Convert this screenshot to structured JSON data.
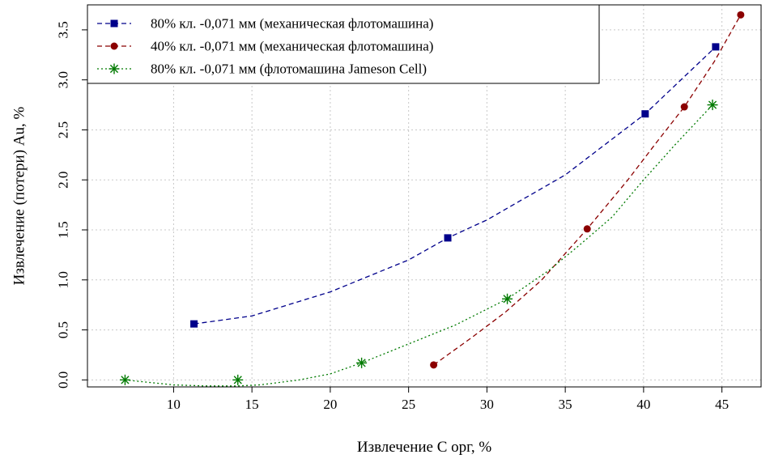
{
  "chart_data": {
    "type": "line",
    "xlabel": "Извлечение С орг, %",
    "ylabel": "Извлечение (потери) Au, %",
    "xlim": [
      4.5,
      47.5
    ],
    "ylim": [
      -0.07,
      3.75
    ],
    "xticks": [
      10,
      15,
      20,
      25,
      30,
      35,
      40,
      45
    ],
    "yticks": [
      0.0,
      0.5,
      1.0,
      1.5,
      2.0,
      2.5,
      3.0,
      3.5
    ],
    "xtick_labels": [
      "10",
      "15",
      "20",
      "25",
      "30",
      "35",
      "40",
      "45"
    ],
    "ytick_labels": [
      "0.0",
      "0.5",
      "1.0",
      "1.5",
      "2.0",
      "2.5",
      "3.0",
      "3.5"
    ],
    "grid": true,
    "legend_position": "top-left",
    "series": [
      {
        "name": "80% кл. -0,071 мм (механическая флотомашина)",
        "color": "#00008b",
        "marker": "square",
        "line_style": "dashed",
        "points": [
          [
            11.3,
            0.56
          ],
          [
            27.5,
            1.42
          ],
          [
            40.1,
            2.66
          ],
          [
            44.6,
            3.33
          ]
        ],
        "curve": [
          [
            11.3,
            0.56
          ],
          [
            15,
            0.64
          ],
          [
            20,
            0.88
          ],
          [
            25,
            1.2
          ],
          [
            27.5,
            1.42
          ],
          [
            30,
            1.6
          ],
          [
            35,
            2.05
          ],
          [
            40.1,
            2.66
          ],
          [
            44.6,
            3.33
          ]
        ]
      },
      {
        "name": "40% кл. -0,071 мм (механическая флотомашина)",
        "color": "#8b0000",
        "marker": "circle",
        "line_style": "dashed",
        "points": [
          [
            26.6,
            0.15
          ],
          [
            36.4,
            1.51
          ],
          [
            42.6,
            2.73
          ],
          [
            46.2,
            3.65
          ]
        ],
        "curve": [
          [
            26.6,
            0.15
          ],
          [
            29,
            0.42
          ],
          [
            31.2,
            0.68
          ],
          [
            33.5,
            1.0
          ],
          [
            36.4,
            1.51
          ],
          [
            39,
            2.0
          ],
          [
            40.8,
            2.37
          ],
          [
            42.6,
            2.73
          ],
          [
            44.5,
            3.18
          ],
          [
            46.2,
            3.65
          ]
        ]
      },
      {
        "name": "80% кл. -0,071 мм (флотомашина Jameson Cell)",
        "color": "#007a00",
        "marker": "asterisk",
        "line_style": "dotted",
        "points": [
          [
            6.9,
            0.0
          ],
          [
            14.1,
            0.0
          ],
          [
            22.0,
            0.17
          ],
          [
            31.3,
            0.81
          ],
          [
            44.4,
            2.75
          ]
        ],
        "curve": [
          [
            6.9,
            0.0
          ],
          [
            10,
            -0.05
          ],
          [
            12,
            -0.06
          ],
          [
            14.1,
            -0.06
          ],
          [
            15.5,
            -0.05
          ],
          [
            18,
            0.0
          ],
          [
            20,
            0.06
          ],
          [
            22.0,
            0.17
          ],
          [
            25,
            0.36
          ],
          [
            28,
            0.55
          ],
          [
            31.3,
            0.81
          ],
          [
            34,
            1.1
          ],
          [
            36,
            1.36
          ],
          [
            38,
            1.63
          ],
          [
            40,
            2.0
          ],
          [
            42,
            2.35
          ],
          [
            44.4,
            2.75
          ]
        ]
      }
    ]
  }
}
